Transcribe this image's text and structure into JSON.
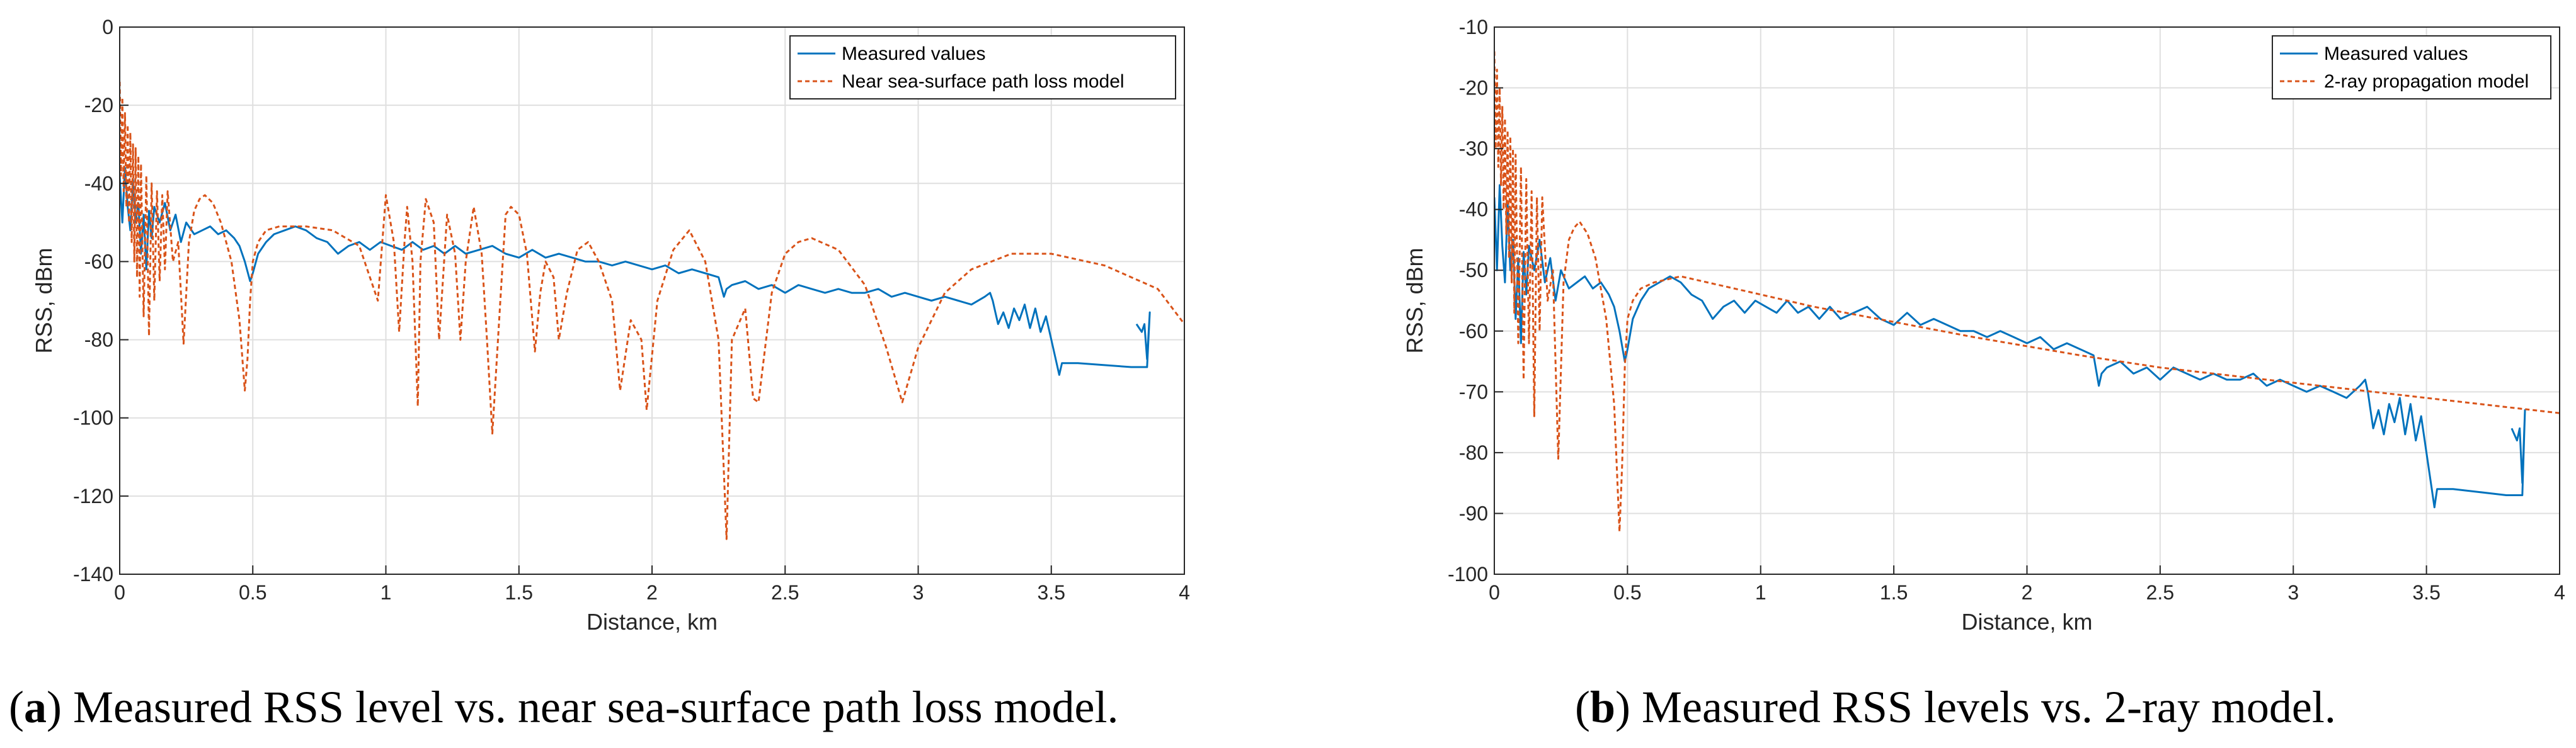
{
  "colors": {
    "measured": "#0072BD",
    "model": "#D95319",
    "grid": "#dfdfdf",
    "axis": "#262626"
  },
  "captions": [
    {
      "letter": "a",
      "text": " Measured RSS level vs. near sea-surface path loss model."
    },
    {
      "letter": "b",
      "text": " Measured RSS levels vs. 2-ray model."
    }
  ],
  "chart_data": [
    {
      "type": "line",
      "xlabel": "Distance, km",
      "ylabel": "RSS, dBm",
      "xlim": [
        0,
        4
      ],
      "ylim": [
        -140,
        0
      ],
      "xticks": [
        0,
        0.5,
        1,
        1.5,
        2,
        2.5,
        3,
        3.5,
        4
      ],
      "yticks": [
        0,
        -20,
        -40,
        -60,
        -80,
        -100,
        -120,
        -140
      ],
      "grid": true,
      "legend_position": "top-right",
      "series": [
        {
          "name": "Measured values",
          "style": "solid",
          "x": [
            0,
            0.01,
            0.02,
            0.03,
            0.04,
            0.05,
            0.06,
            0.07,
            0.08,
            0.09,
            0.1,
            0.11,
            0.12,
            0.13,
            0.15,
            0.17,
            0.19,
            0.21,
            0.23,
            0.25,
            0.28,
            0.31,
            0.34,
            0.37,
            0.4,
            0.43,
            0.45,
            0.47,
            0.49,
            0.5,
            0.52,
            0.55,
            0.58,
            0.62,
            0.66,
            0.7,
            0.74,
            0.78,
            0.82,
            0.86,
            0.9,
            0.94,
            0.98,
            1.02,
            1.06,
            1.1,
            1.14,
            1.18,
            1.22,
            1.26,
            1.3,
            1.35,
            1.4,
            1.45,
            1.5,
            1.55,
            1.6,
            1.65,
            1.7,
            1.75,
            1.8,
            1.85,
            1.9,
            1.95,
            2.0,
            2.05,
            2.1,
            2.15,
            2.2,
            2.25,
            2.27,
            2.28,
            2.3,
            2.35,
            2.4,
            2.45,
            2.5,
            2.55,
            2.6,
            2.65,
            2.7,
            2.75,
            2.8,
            2.85,
            2.9,
            2.95,
            3.0,
            3.05,
            3.1,
            3.15,
            3.2,
            3.25,
            3.27,
            3.28,
            3.29,
            3.3,
            3.32,
            3.34,
            3.36,
            3.38,
            3.4,
            3.42,
            3.44,
            3.46,
            3.48,
            3.5,
            3.52,
            3.53,
            3.54,
            3.6,
            3.7,
            3.8,
            3.86,
            3.87,
            3.86,
            3.85,
            3.84,
            3.83,
            3.82
          ],
          "y": [
            -38,
            -50,
            -36,
            -46,
            -52,
            -39,
            -50,
            -45,
            -58,
            -48,
            -62,
            -47,
            -54,
            -46,
            -50,
            -45,
            -52,
            -48,
            -55,
            -50,
            -53,
            -52,
            -51,
            -53,
            -52,
            -54,
            -56,
            -60,
            -65,
            -63,
            -58,
            -55,
            -53,
            -52,
            -51,
            -52,
            -54,
            -55,
            -58,
            -56,
            -55,
            -57,
            -55,
            -56,
            -57,
            -55,
            -57,
            -56,
            -58,
            -56,
            -58,
            -57,
            -56,
            -58,
            -59,
            -57,
            -59,
            -58,
            -59,
            -60,
            -60,
            -61,
            -60,
            -61,
            -62,
            -61,
            -63,
            -62,
            -63,
            -64,
            -69,
            -67,
            -66,
            -65,
            -67,
            -66,
            -68,
            -66,
            -67,
            -68,
            -67,
            -68,
            -68,
            -67,
            -69,
            -68,
            -69,
            -70,
            -69,
            -70,
            -71,
            -69,
            -68,
            -70,
            -73,
            -76,
            -73,
            -77,
            -72,
            -75,
            -71,
            -77,
            -72,
            -78,
            -74,
            -80,
            -86,
            -89,
            -86,
            -86,
            -86.5,
            -87,
            -87,
            -73,
            -85,
            -76,
            -78,
            -77,
            -76
          ]
        },
        {
          "name": "Near sea-surface path loss model",
          "style": "dashed",
          "x": [
            0.0,
            0.005,
            0.01,
            0.015,
            0.02,
            0.025,
            0.03,
            0.035,
            0.04,
            0.045,
            0.05,
            0.055,
            0.06,
            0.065,
            0.07,
            0.075,
            0.08,
            0.09,
            0.1,
            0.11,
            0.12,
            0.13,
            0.14,
            0.15,
            0.16,
            0.17,
            0.18,
            0.2,
            0.22,
            0.24,
            0.26,
            0.28,
            0.3,
            0.32,
            0.35,
            0.38,
            0.42,
            0.45,
            0.47,
            0.48,
            0.49,
            0.5,
            0.52,
            0.55,
            0.6,
            0.7,
            0.8,
            0.9,
            0.97,
            1.0,
            1.03,
            1.05,
            1.07,
            1.08,
            1.1,
            1.12,
            1.13,
            1.15,
            1.18,
            1.2,
            1.23,
            1.26,
            1.28,
            1.3,
            1.33,
            1.36,
            1.38,
            1.4,
            1.43,
            1.45,
            1.47,
            1.5,
            1.53,
            1.56,
            1.58,
            1.6,
            1.63,
            1.65,
            1.68,
            1.72,
            1.76,
            1.8,
            1.85,
            1.88,
            1.92,
            1.96,
            1.98,
            2.02,
            2.08,
            2.14,
            2.2,
            2.25,
            2.28,
            2.3,
            2.35,
            2.38,
            2.4,
            2.45,
            2.5,
            2.55,
            2.6,
            2.7,
            2.8,
            2.88,
            2.94,
            3.0,
            3.1,
            3.2,
            3.35,
            3.5,
            3.7,
            3.9,
            4.0
          ],
          "y": [
            -14,
            -38,
            -18,
            -42,
            -22,
            -46,
            -25,
            -50,
            -27,
            -55,
            -30,
            -60,
            -31,
            -64,
            -33,
            -69,
            -35,
            -74,
            -38,
            -79,
            -40,
            -70,
            -42,
            -65,
            -43,
            -62,
            -42,
            -60,
            -55,
            -81,
            -55,
            -47,
            -44,
            -43,
            -45,
            -50,
            -60,
            -75,
            -93,
            -85,
            -70,
            -60,
            -55,
            -52,
            -51,
            -51,
            -52,
            -56,
            -70,
            -43,
            -55,
            -78,
            -55,
            -46,
            -60,
            -97,
            -60,
            -44,
            -50,
            -80,
            -48,
            -58,
            -80,
            -60,
            -46,
            -58,
            -80,
            -104,
            -70,
            -48,
            -46,
            -48,
            -58,
            -83,
            -68,
            -60,
            -64,
            -80,
            -68,
            -57,
            -55,
            -60,
            -70,
            -93,
            -75,
            -80,
            -98,
            -70,
            -57,
            -52,
            -60,
            -80,
            -131,
            -80,
            -72,
            -95,
            -96,
            -68,
            -58,
            -55,
            -54,
            -57,
            -66,
            -82,
            -96,
            -82,
            -68,
            -62,
            -58,
            -58,
            -61,
            -67,
            -76
          ]
        }
      ]
    },
    {
      "type": "line",
      "xlabel": "Distance, km",
      "ylabel": "RSS, dBm",
      "xlim": [
        0,
        4
      ],
      "ylim": [
        -100,
        -10
      ],
      "xticks": [
        0,
        0.5,
        1,
        1.5,
        2,
        2.5,
        3,
        3.5,
        4
      ],
      "yticks": [
        -10,
        -20,
        -30,
        -40,
        -50,
        -60,
        -70,
        -80,
        -90,
        -100
      ],
      "grid": true,
      "legend_position": "top-right",
      "series": [
        {
          "name": "Measured values",
          "style": "solid",
          "x": [
            0,
            0.01,
            0.02,
            0.03,
            0.04,
            0.05,
            0.06,
            0.07,
            0.08,
            0.09,
            0.1,
            0.11,
            0.12,
            0.13,
            0.15,
            0.17,
            0.19,
            0.21,
            0.23,
            0.25,
            0.28,
            0.31,
            0.34,
            0.37,
            0.4,
            0.43,
            0.45,
            0.47,
            0.49,
            0.5,
            0.52,
            0.55,
            0.58,
            0.62,
            0.66,
            0.7,
            0.74,
            0.78,
            0.82,
            0.86,
            0.9,
            0.94,
            0.98,
            1.02,
            1.06,
            1.1,
            1.14,
            1.18,
            1.22,
            1.26,
            1.3,
            1.35,
            1.4,
            1.45,
            1.5,
            1.55,
            1.6,
            1.65,
            1.7,
            1.75,
            1.8,
            1.85,
            1.9,
            1.95,
            2.0,
            2.05,
            2.1,
            2.15,
            2.2,
            2.25,
            2.27,
            2.28,
            2.3,
            2.35,
            2.4,
            2.45,
            2.5,
            2.55,
            2.6,
            2.65,
            2.7,
            2.75,
            2.8,
            2.85,
            2.9,
            2.95,
            3.0,
            3.05,
            3.1,
            3.15,
            3.2,
            3.25,
            3.27,
            3.28,
            3.29,
            3.3,
            3.32,
            3.34,
            3.36,
            3.38,
            3.4,
            3.42,
            3.44,
            3.46,
            3.48,
            3.5,
            3.52,
            3.53,
            3.54,
            3.6,
            3.7,
            3.8,
            3.86,
            3.87,
            3.86,
            3.85,
            3.84,
            3.83,
            3.82
          ],
          "y": [
            -38,
            -50,
            -36,
            -46,
            -52,
            -39,
            -50,
            -45,
            -58,
            -48,
            -62,
            -47,
            -54,
            -46,
            -50,
            -45,
            -52,
            -48,
            -55,
            -50,
            -53,
            -52,
            -51,
            -53,
            -52,
            -54,
            -56,
            -60,
            -65,
            -63,
            -58,
            -55,
            -53,
            -52,
            -51,
            -52,
            -54,
            -55,
            -58,
            -56,
            -55,
            -57,
            -55,
            -56,
            -57,
            -55,
            -57,
            -56,
            -58,
            -56,
            -58,
            -57,
            -56,
            -58,
            -59,
            -57,
            -59,
            -58,
            -59,
            -60,
            -60,
            -61,
            -60,
            -61,
            -62,
            -61,
            -63,
            -62,
            -63,
            -64,
            -69,
            -67,
            -66,
            -65,
            -67,
            -66,
            -68,
            -66,
            -67,
            -68,
            -67,
            -68,
            -68,
            -67,
            -69,
            -68,
            -69,
            -70,
            -69,
            -70,
            -71,
            -69,
            -68,
            -70,
            -73,
            -76,
            -73,
            -77,
            -72,
            -75,
            -71,
            -77,
            -72,
            -78,
            -74,
            -80,
            -86,
            -89,
            -86,
            -86,
            -86.5,
            -87,
            -87,
            -73,
            -85,
            -76,
            -78,
            -77,
            -76
          ]
        },
        {
          "name": "2-ray propagation model",
          "style": "dashed",
          "x": [
            0.0,
            0.005,
            0.01,
            0.015,
            0.02,
            0.025,
            0.03,
            0.035,
            0.04,
            0.045,
            0.05,
            0.055,
            0.06,
            0.065,
            0.07,
            0.075,
            0.08,
            0.09,
            0.1,
            0.11,
            0.12,
            0.13,
            0.14,
            0.15,
            0.16,
            0.17,
            0.18,
            0.2,
            0.22,
            0.24,
            0.26,
            0.28,
            0.3,
            0.32,
            0.35,
            0.38,
            0.42,
            0.45,
            0.47,
            0.48,
            0.49,
            0.5,
            0.52,
            0.55,
            0.6,
            0.7,
            0.8,
            1.0,
            1.2,
            1.5,
            1.8,
            2.0,
            2.2,
            2.5,
            2.8,
            3.0,
            3.2,
            3.5,
            3.8,
            4.0
          ],
          "y": [
            -14,
            -30,
            -17,
            -33,
            -20,
            -36,
            -23,
            -40,
            -25,
            -44,
            -27,
            -48,
            -28,
            -52,
            -30,
            -57,
            -31,
            -62,
            -33,
            -68,
            -35,
            -62,
            -37,
            -74,
            -38,
            -60,
            -38,
            -55,
            -50,
            -81,
            -52,
            -45,
            -43,
            -42,
            -44,
            -48,
            -58,
            -72,
            -93,
            -82,
            -66,
            -58,
            -55,
            -53,
            -52,
            -51,
            -52,
            -54,
            -56,
            -58.5,
            -61,
            -62.5,
            -64,
            -66,
            -67.5,
            -68.5,
            -69.5,
            -71,
            -72.5,
            -73.5
          ]
        }
      ]
    }
  ]
}
